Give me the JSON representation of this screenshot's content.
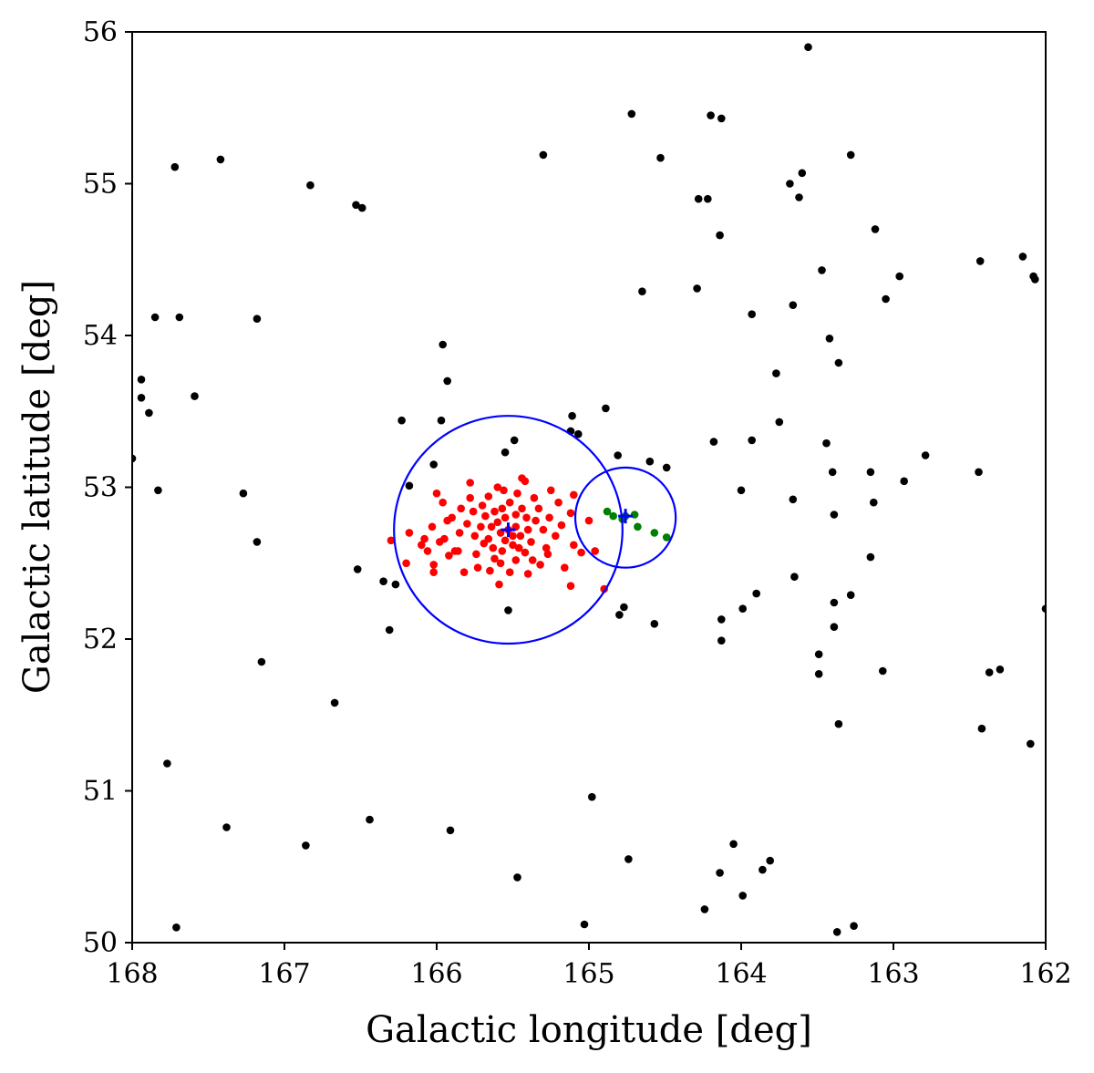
{
  "chart_data": {
    "type": "scatter",
    "xlabel": "Galactic longitude [deg]",
    "ylabel": "Galactic latitude [deg]",
    "xlim": [
      168,
      162
    ],
    "ylim": [
      50,
      56
    ],
    "x_inverted": true,
    "xticks": [
      168,
      167,
      166,
      165,
      164,
      163,
      162
    ],
    "yticks": [
      50,
      51,
      52,
      53,
      54,
      55,
      56
    ],
    "grid": false,
    "legend": "none",
    "series": [
      {
        "color": "#000000",
        "marker": "dot",
        "points": [
          [
            163.56,
            55.9
          ],
          [
            164.72,
            55.46
          ],
          [
            164.2,
            55.45
          ],
          [
            164.13,
            55.43
          ],
          [
            167.72,
            55.11
          ],
          [
            167.42,
            55.16
          ],
          [
            165.3,
            55.19
          ],
          [
            164.53,
            55.17
          ],
          [
            163.28,
            55.19
          ],
          [
            163.6,
            55.07
          ],
          [
            163.68,
            55.0
          ],
          [
            163.62,
            54.91
          ],
          [
            166.83,
            54.99
          ],
          [
            166.53,
            54.86
          ],
          [
            166.49,
            54.84
          ],
          [
            164.28,
            54.9
          ],
          [
            164.22,
            54.9
          ],
          [
            164.14,
            54.66
          ],
          [
            163.12,
            54.7
          ],
          [
            162.43,
            54.49
          ],
          [
            162.15,
            54.52
          ],
          [
            162.08,
            54.39
          ],
          [
            162.07,
            54.37
          ],
          [
            163.47,
            54.43
          ],
          [
            162.96,
            54.39
          ],
          [
            164.65,
            54.29
          ],
          [
            164.29,
            54.31
          ],
          [
            163.05,
            54.24
          ],
          [
            163.66,
            54.2
          ],
          [
            163.93,
            54.14
          ],
          [
            167.85,
            54.12
          ],
          [
            167.69,
            54.12
          ],
          [
            167.18,
            54.11
          ],
          [
            163.42,
            53.98
          ],
          [
            165.96,
            53.94
          ],
          [
            163.36,
            53.82
          ],
          [
            163.77,
            53.75
          ],
          [
            167.94,
            53.71
          ],
          [
            165.93,
            53.7
          ],
          [
            167.94,
            53.59
          ],
          [
            167.59,
            53.6
          ],
          [
            167.89,
            53.49
          ],
          [
            164.89,
            53.52
          ],
          [
            165.11,
            53.47
          ],
          [
            166.23,
            53.44
          ],
          [
            165.97,
            53.44
          ],
          [
            163.75,
            53.43
          ],
          [
            165.12,
            53.37
          ],
          [
            165.07,
            53.35
          ],
          [
            165.49,
            53.31
          ],
          [
            163.93,
            53.31
          ],
          [
            164.18,
            53.3
          ],
          [
            163.44,
            53.29
          ],
          [
            165.55,
            53.23
          ],
          [
            164.81,
            53.21
          ],
          [
            162.79,
            53.21
          ],
          [
            164.6,
            53.17
          ],
          [
            166.02,
            53.15
          ],
          [
            164.49,
            53.13
          ],
          [
            163.4,
            53.1
          ],
          [
            163.15,
            53.1
          ],
          [
            162.44,
            53.1
          ],
          [
            162.93,
            53.04
          ],
          [
            168.0,
            53.19
          ],
          [
            166.18,
            53.01
          ],
          [
            164.0,
            52.98
          ],
          [
            167.83,
            52.98
          ],
          [
            167.27,
            52.96
          ],
          [
            163.66,
            52.92
          ],
          [
            163.13,
            52.9
          ],
          [
            163.39,
            52.82
          ],
          [
            167.18,
            52.64
          ],
          [
            163.15,
            52.54
          ],
          [
            166.52,
            52.46
          ],
          [
            163.65,
            52.41
          ],
          [
            166.35,
            52.38
          ],
          [
            166.27,
            52.36
          ],
          [
            163.9,
            52.3
          ],
          [
            163.28,
            52.29
          ],
          [
            163.39,
            52.24
          ],
          [
            164.77,
            52.21
          ],
          [
            163.99,
            52.2
          ],
          [
            165.53,
            52.19
          ],
          [
            164.8,
            52.16
          ],
          [
            164.13,
            52.13
          ],
          [
            164.57,
            52.1
          ],
          [
            163.39,
            52.08
          ],
          [
            166.31,
            52.06
          ],
          [
            164.13,
            51.99
          ],
          [
            163.49,
            51.9
          ],
          [
            167.15,
            51.85
          ],
          [
            163.07,
            51.79
          ],
          [
            162.3,
            51.8
          ],
          [
            162.37,
            51.78
          ],
          [
            163.49,
            51.77
          ],
          [
            166.67,
            51.58
          ],
          [
            163.36,
            51.44
          ],
          [
            162.42,
            51.41
          ],
          [
            162.1,
            51.31
          ],
          [
            167.77,
            51.18
          ],
          [
            164.98,
            50.96
          ],
          [
            166.44,
            50.81
          ],
          [
            167.38,
            50.76
          ],
          [
            165.91,
            50.74
          ],
          [
            166.86,
            50.64
          ],
          [
            164.05,
            50.65
          ],
          [
            163.81,
            50.54
          ],
          [
            164.74,
            50.55
          ],
          [
            163.86,
            50.48
          ],
          [
            164.14,
            50.46
          ],
          [
            165.47,
            50.43
          ],
          [
            163.99,
            50.31
          ],
          [
            164.24,
            50.22
          ],
          [
            165.03,
            50.12
          ],
          [
            167.71,
            50.1
          ],
          [
            163.26,
            50.11
          ],
          [
            163.37,
            50.07
          ],
          [
            162.0,
            52.2
          ]
        ]
      },
      {
        "color": "#ff0000",
        "marker": "dot",
        "points": [
          [
            165.53,
            52.72
          ],
          [
            165.58,
            52.7
          ],
          [
            165.48,
            52.74
          ],
          [
            165.6,
            52.77
          ],
          [
            165.45,
            52.68
          ],
          [
            165.55,
            52.8
          ],
          [
            165.66,
            52.66
          ],
          [
            165.4,
            52.72
          ],
          [
            165.5,
            52.62
          ],
          [
            165.62,
            52.84
          ],
          [
            165.35,
            52.78
          ],
          [
            165.71,
            52.74
          ],
          [
            165.44,
            52.86
          ],
          [
            165.57,
            52.58
          ],
          [
            165.68,
            52.81
          ],
          [
            165.38,
            52.64
          ],
          [
            165.75,
            52.68
          ],
          [
            165.3,
            52.72
          ],
          [
            165.52,
            52.9
          ],
          [
            165.63,
            52.6
          ],
          [
            165.42,
            52.57
          ],
          [
            165.8,
            52.76
          ],
          [
            165.26,
            52.8
          ],
          [
            165.48,
            52.52
          ],
          [
            165.7,
            52.88
          ],
          [
            165.33,
            52.86
          ],
          [
            165.85,
            52.7
          ],
          [
            165.22,
            52.68
          ],
          [
            165.58,
            52.5
          ],
          [
            165.9,
            52.8
          ],
          [
            165.47,
            52.96
          ],
          [
            165.66,
            52.94
          ],
          [
            165.18,
            52.75
          ],
          [
            165.95,
            52.66
          ],
          [
            165.37,
            52.52
          ],
          [
            165.28,
            52.6
          ],
          [
            165.74,
            52.56
          ],
          [
            165.56,
            52.98
          ],
          [
            165.42,
            53.04
          ],
          [
            165.86,
            52.58
          ],
          [
            165.1,
            52.62
          ],
          [
            165.2,
            52.9
          ],
          [
            166.03,
            52.74
          ],
          [
            165.78,
            52.93
          ],
          [
            165.52,
            52.44
          ],
          [
            165.32,
            52.49
          ],
          [
            165.65,
            52.45
          ],
          [
            165.0,
            52.78
          ],
          [
            165.12,
            52.83
          ],
          [
            166.1,
            52.62
          ],
          [
            165.96,
            52.9
          ],
          [
            165.73,
            52.47
          ],
          [
            165.25,
            52.98
          ],
          [
            165.1,
            52.95
          ],
          [
            165.84,
            52.86
          ],
          [
            166.18,
            52.7
          ],
          [
            165.92,
            52.55
          ],
          [
            165.6,
            53.0
          ],
          [
            165.05,
            52.57
          ],
          [
            165.4,
            52.43
          ],
          [
            166.06,
            52.58
          ],
          [
            166.3,
            52.65
          ],
          [
            166.02,
            52.49
          ],
          [
            165.82,
            52.44
          ],
          [
            165.59,
            52.36
          ],
          [
            165.16,
            52.47
          ],
          [
            165.12,
            52.35
          ],
          [
            164.96,
            52.58
          ],
          [
            164.9,
            52.33
          ],
          [
            166.2,
            52.5
          ],
          [
            166.02,
            52.44
          ],
          [
            165.88,
            52.58
          ],
          [
            165.44,
            53.06
          ],
          [
            165.78,
            53.03
          ],
          [
            166.0,
            52.96
          ],
          [
            165.98,
            52.64
          ],
          [
            166.08,
            52.66
          ],
          [
            165.93,
            52.78
          ],
          [
            165.69,
            52.63
          ],
          [
            165.48,
            52.82
          ],
          [
            165.36,
            52.93
          ],
          [
            165.27,
            52.56
          ],
          [
            165.62,
            52.53
          ],
          [
            165.76,
            52.84
          ],
          [
            165.55,
            52.65
          ],
          [
            165.46,
            52.6
          ],
          [
            165.64,
            52.74
          ],
          [
            165.41,
            52.8
          ],
          [
            165.5,
            52.68
          ],
          [
            165.57,
            52.86
          ]
        ]
      },
      {
        "color": "#008000",
        "marker": "dot",
        "points": [
          [
            164.88,
            52.84
          ],
          [
            164.84,
            52.81
          ],
          [
            164.76,
            52.81
          ],
          [
            164.7,
            52.82
          ],
          [
            164.68,
            52.74
          ],
          [
            164.57,
            52.7
          ],
          [
            164.49,
            52.67
          ],
          [
            164.78,
            52.79
          ]
        ]
      }
    ],
    "circles": [
      {
        "center": [
          165.53,
          52.72
        ],
        "radius": 0.75,
        "color": "#0000ff"
      },
      {
        "center": [
          164.76,
          52.8
        ],
        "radius": 0.33,
        "color": "#0000ff"
      }
    ],
    "centers": [
      {
        "x": 165.53,
        "y": 52.72,
        "color": "#0000ff",
        "marker": "plus"
      },
      {
        "x": 164.76,
        "y": 52.81,
        "color": "#0000ff",
        "marker": "plus"
      }
    ]
  }
}
